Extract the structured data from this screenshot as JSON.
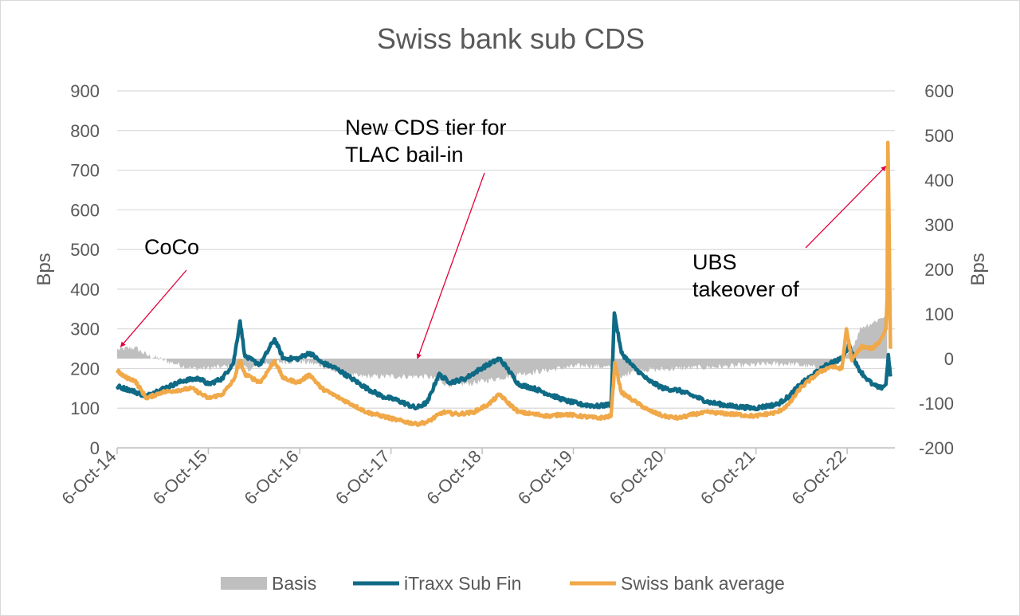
{
  "chart_data": {
    "type": "line",
    "title": "Swiss bank sub CDS",
    "y_left": {
      "label": "Bps",
      "range": [
        0,
        900
      ],
      "ticks": [
        "0",
        "100",
        "200",
        "300",
        "400",
        "500",
        "600",
        "700",
        "800",
        "900"
      ]
    },
    "y_right": {
      "label": "Bps",
      "range": [
        -200,
        600
      ],
      "ticks": [
        "-200",
        "-100",
        "0",
        "100",
        "200",
        "300",
        "400",
        "500",
        "600"
      ]
    },
    "x_axis": {
      "range": [
        "2014-10-06",
        "2023-04-15"
      ],
      "tick_labels": [
        "6-Oct-14",
        "6-Oct-15",
        "6-Oct-16",
        "6-Oct-17",
        "6-Oct-18",
        "6-Oct-19",
        "6-Oct-20",
        "6-Oct-21",
        "6-Oct-22"
      ]
    },
    "grid": "horizontal",
    "legend_position": "bottom",
    "series": [
      {
        "name": "Basis",
        "kind": "area",
        "axis": "right",
        "color": "#bfbfbf",
        "points": [
          [
            "2014-10-06",
            20
          ],
          [
            "2014-12-15",
            25
          ],
          [
            "2015-02-01",
            8
          ],
          [
            "2015-04-01",
            -2
          ],
          [
            "2015-06-01",
            -12
          ],
          [
            "2015-08-01",
            -22
          ],
          [
            "2015-10-01",
            -22
          ],
          [
            "2015-12-01",
            -18
          ],
          [
            "2016-02-15",
            -18
          ],
          [
            "2016-03-20",
            -25
          ],
          [
            "2016-05-01",
            -12
          ],
          [
            "2016-07-01",
            -8
          ],
          [
            "2016-10-01",
            -5
          ],
          [
            "2017-01-01",
            -15
          ],
          [
            "2017-03-01",
            -30
          ],
          [
            "2017-06-01",
            -40
          ],
          [
            "2017-09-01",
            -40
          ],
          [
            "2017-12-01",
            -40
          ],
          [
            "2018-03-01",
            -40
          ],
          [
            "2018-06-01",
            -60
          ],
          [
            "2018-09-01",
            -55
          ],
          [
            "2018-12-01",
            -45
          ],
          [
            "2019-03-01",
            -35
          ],
          [
            "2019-06-01",
            -28
          ],
          [
            "2019-09-01",
            -20
          ],
          [
            "2019-12-01",
            -15
          ],
          [
            "2020-03-01",
            -20
          ],
          [
            "2020-04-15",
            -45
          ],
          [
            "2020-06-01",
            -25
          ],
          [
            "2020-09-01",
            -25
          ],
          [
            "2020-12-01",
            -22
          ],
          [
            "2021-03-01",
            -20
          ],
          [
            "2021-06-01",
            -18
          ],
          [
            "2021-09-01",
            -15
          ],
          [
            "2021-12-01",
            -12
          ],
          [
            "2022-03-01",
            -12
          ],
          [
            "2022-06-01",
            -20
          ],
          [
            "2022-09-01",
            -10
          ],
          [
            "2022-10-15",
            10
          ],
          [
            "2022-12-01",
            70
          ],
          [
            "2023-01-15",
            80
          ],
          [
            "2023-02-15",
            90
          ],
          [
            "2023-03-15",
            100
          ]
        ]
      },
      {
        "name": "iTraxx Sub Fin",
        "kind": "line",
        "axis": "left",
        "color": "#0f6a85",
        "points": [
          [
            "2014-10-06",
            155
          ],
          [
            "2014-12-01",
            145
          ],
          [
            "2015-02-01",
            130
          ],
          [
            "2015-03-01",
            140
          ],
          [
            "2015-05-01",
            155
          ],
          [
            "2015-07-01",
            170
          ],
          [
            "2015-09-01",
            175
          ],
          [
            "2015-10-06",
            160
          ],
          [
            "2015-12-01",
            175
          ],
          [
            "2016-01-15",
            215
          ],
          [
            "2016-02-10",
            320
          ],
          [
            "2016-03-01",
            230
          ],
          [
            "2016-05-01",
            210
          ],
          [
            "2016-06-27",
            275
          ],
          [
            "2016-08-01",
            225
          ],
          [
            "2016-10-01",
            225
          ],
          [
            "2016-11-15",
            240
          ],
          [
            "2017-01-01",
            215
          ],
          [
            "2017-03-01",
            200
          ],
          [
            "2017-05-01",
            175
          ],
          [
            "2017-07-01",
            150
          ],
          [
            "2017-09-01",
            130
          ],
          [
            "2017-11-01",
            120
          ],
          [
            "2018-01-15",
            100
          ],
          [
            "2018-03-01",
            115
          ],
          [
            "2018-04-15",
            185
          ],
          [
            "2018-06-01",
            165
          ],
          [
            "2018-08-01",
            175
          ],
          [
            "2018-10-01",
            200
          ],
          [
            "2018-12-15",
            225
          ],
          [
            "2019-01-15",
            200
          ],
          [
            "2019-03-01",
            160
          ],
          [
            "2019-05-01",
            150
          ],
          [
            "2019-07-01",
            135
          ],
          [
            "2019-09-01",
            120
          ],
          [
            "2019-11-01",
            110
          ],
          [
            "2020-01-15",
            105
          ],
          [
            "2020-03-05",
            110
          ],
          [
            "2020-03-18",
            340
          ],
          [
            "2020-04-15",
            240
          ],
          [
            "2020-06-01",
            205
          ],
          [
            "2020-08-01",
            170
          ],
          [
            "2020-10-01",
            150
          ],
          [
            "2020-12-01",
            145
          ],
          [
            "2021-02-01",
            130
          ],
          [
            "2021-04-01",
            115
          ],
          [
            "2021-07-01",
            105
          ],
          [
            "2021-10-01",
            100
          ],
          [
            "2022-01-01",
            110
          ],
          [
            "2022-02-15",
            130
          ],
          [
            "2022-04-01",
            160
          ],
          [
            "2022-06-15",
            195
          ],
          [
            "2022-08-01",
            215
          ],
          [
            "2022-09-15",
            225
          ],
          [
            "2022-10-15",
            260
          ],
          [
            "2022-11-15",
            205
          ],
          [
            "2022-12-15",
            180
          ],
          [
            "2023-01-15",
            160
          ],
          [
            "2023-02-15",
            150
          ],
          [
            "2023-03-10",
            160
          ],
          [
            "2023-03-20",
            235
          ],
          [
            "2023-03-28",
            180
          ]
        ]
      },
      {
        "name": "Swiss bank average",
        "kind": "line",
        "axis": "left",
        "color": "#f0a848",
        "points": [
          [
            "2014-10-06",
            195
          ],
          [
            "2014-11-01",
            180
          ],
          [
            "2014-12-15",
            170
          ],
          [
            "2015-02-01",
            125
          ],
          [
            "2015-04-01",
            140
          ],
          [
            "2015-06-01",
            145
          ],
          [
            "2015-08-01",
            150
          ],
          [
            "2015-10-06",
            125
          ],
          [
            "2015-12-01",
            135
          ],
          [
            "2016-01-15",
            170
          ],
          [
            "2016-02-10",
            220
          ],
          [
            "2016-03-01",
            185
          ],
          [
            "2016-05-01",
            165
          ],
          [
            "2016-06-27",
            220
          ],
          [
            "2016-08-01",
            175
          ],
          [
            "2016-10-01",
            165
          ],
          [
            "2016-11-15",
            185
          ],
          [
            "2017-01-01",
            150
          ],
          [
            "2017-03-01",
            130
          ],
          [
            "2017-05-01",
            110
          ],
          [
            "2017-07-01",
            90
          ],
          [
            "2017-09-01",
            80
          ],
          [
            "2017-11-01",
            70
          ],
          [
            "2018-01-15",
            60
          ],
          [
            "2018-03-01",
            65
          ],
          [
            "2018-05-01",
            90
          ],
          [
            "2018-07-01",
            85
          ],
          [
            "2018-09-01",
            90
          ],
          [
            "2018-11-01",
            110
          ],
          [
            "2018-12-15",
            135
          ],
          [
            "2019-01-15",
            115
          ],
          [
            "2019-03-01",
            90
          ],
          [
            "2019-05-01",
            85
          ],
          [
            "2019-07-01",
            80
          ],
          [
            "2019-09-01",
            85
          ],
          [
            "2019-11-01",
            80
          ],
          [
            "2020-01-15",
            75
          ],
          [
            "2020-03-05",
            80
          ],
          [
            "2020-03-20",
            215
          ],
          [
            "2020-04-15",
            140
          ],
          [
            "2020-06-01",
            120
          ],
          [
            "2020-08-01",
            95
          ],
          [
            "2020-10-01",
            80
          ],
          [
            "2020-12-01",
            75
          ],
          [
            "2021-02-01",
            85
          ],
          [
            "2021-04-01",
            90
          ],
          [
            "2021-07-01",
            85
          ],
          [
            "2021-10-01",
            80
          ],
          [
            "2022-01-01",
            90
          ],
          [
            "2022-02-15",
            110
          ],
          [
            "2022-04-01",
            150
          ],
          [
            "2022-06-15",
            190
          ],
          [
            "2022-08-01",
            205
          ],
          [
            "2022-09-15",
            200
          ],
          [
            "2022-10-03",
            300
          ],
          [
            "2022-10-25",
            220
          ],
          [
            "2022-12-01",
            255
          ],
          [
            "2023-01-15",
            250
          ],
          [
            "2023-02-15",
            270
          ],
          [
            "2023-03-10",
            300
          ],
          [
            "2023-03-15",
            380
          ],
          [
            "2023-03-18",
            770
          ],
          [
            "2023-03-22",
            600
          ],
          [
            "2023-03-28",
            250
          ]
        ]
      }
    ],
    "annotations": [
      {
        "lines": [
          "CoCo"
        ],
        "arrow_to": [
          "2014-10-20",
          255
        ]
      },
      {
        "lines": [
          "New CDS tier for",
          "TLAC bail-in"
        ],
        "arrow_to": [
          "2018-01-20",
          225
        ]
      },
      {
        "lines": [
          "UBS",
          "takeover of"
        ],
        "arrow_to": [
          "2023-03-10",
          710
        ]
      }
    ]
  }
}
